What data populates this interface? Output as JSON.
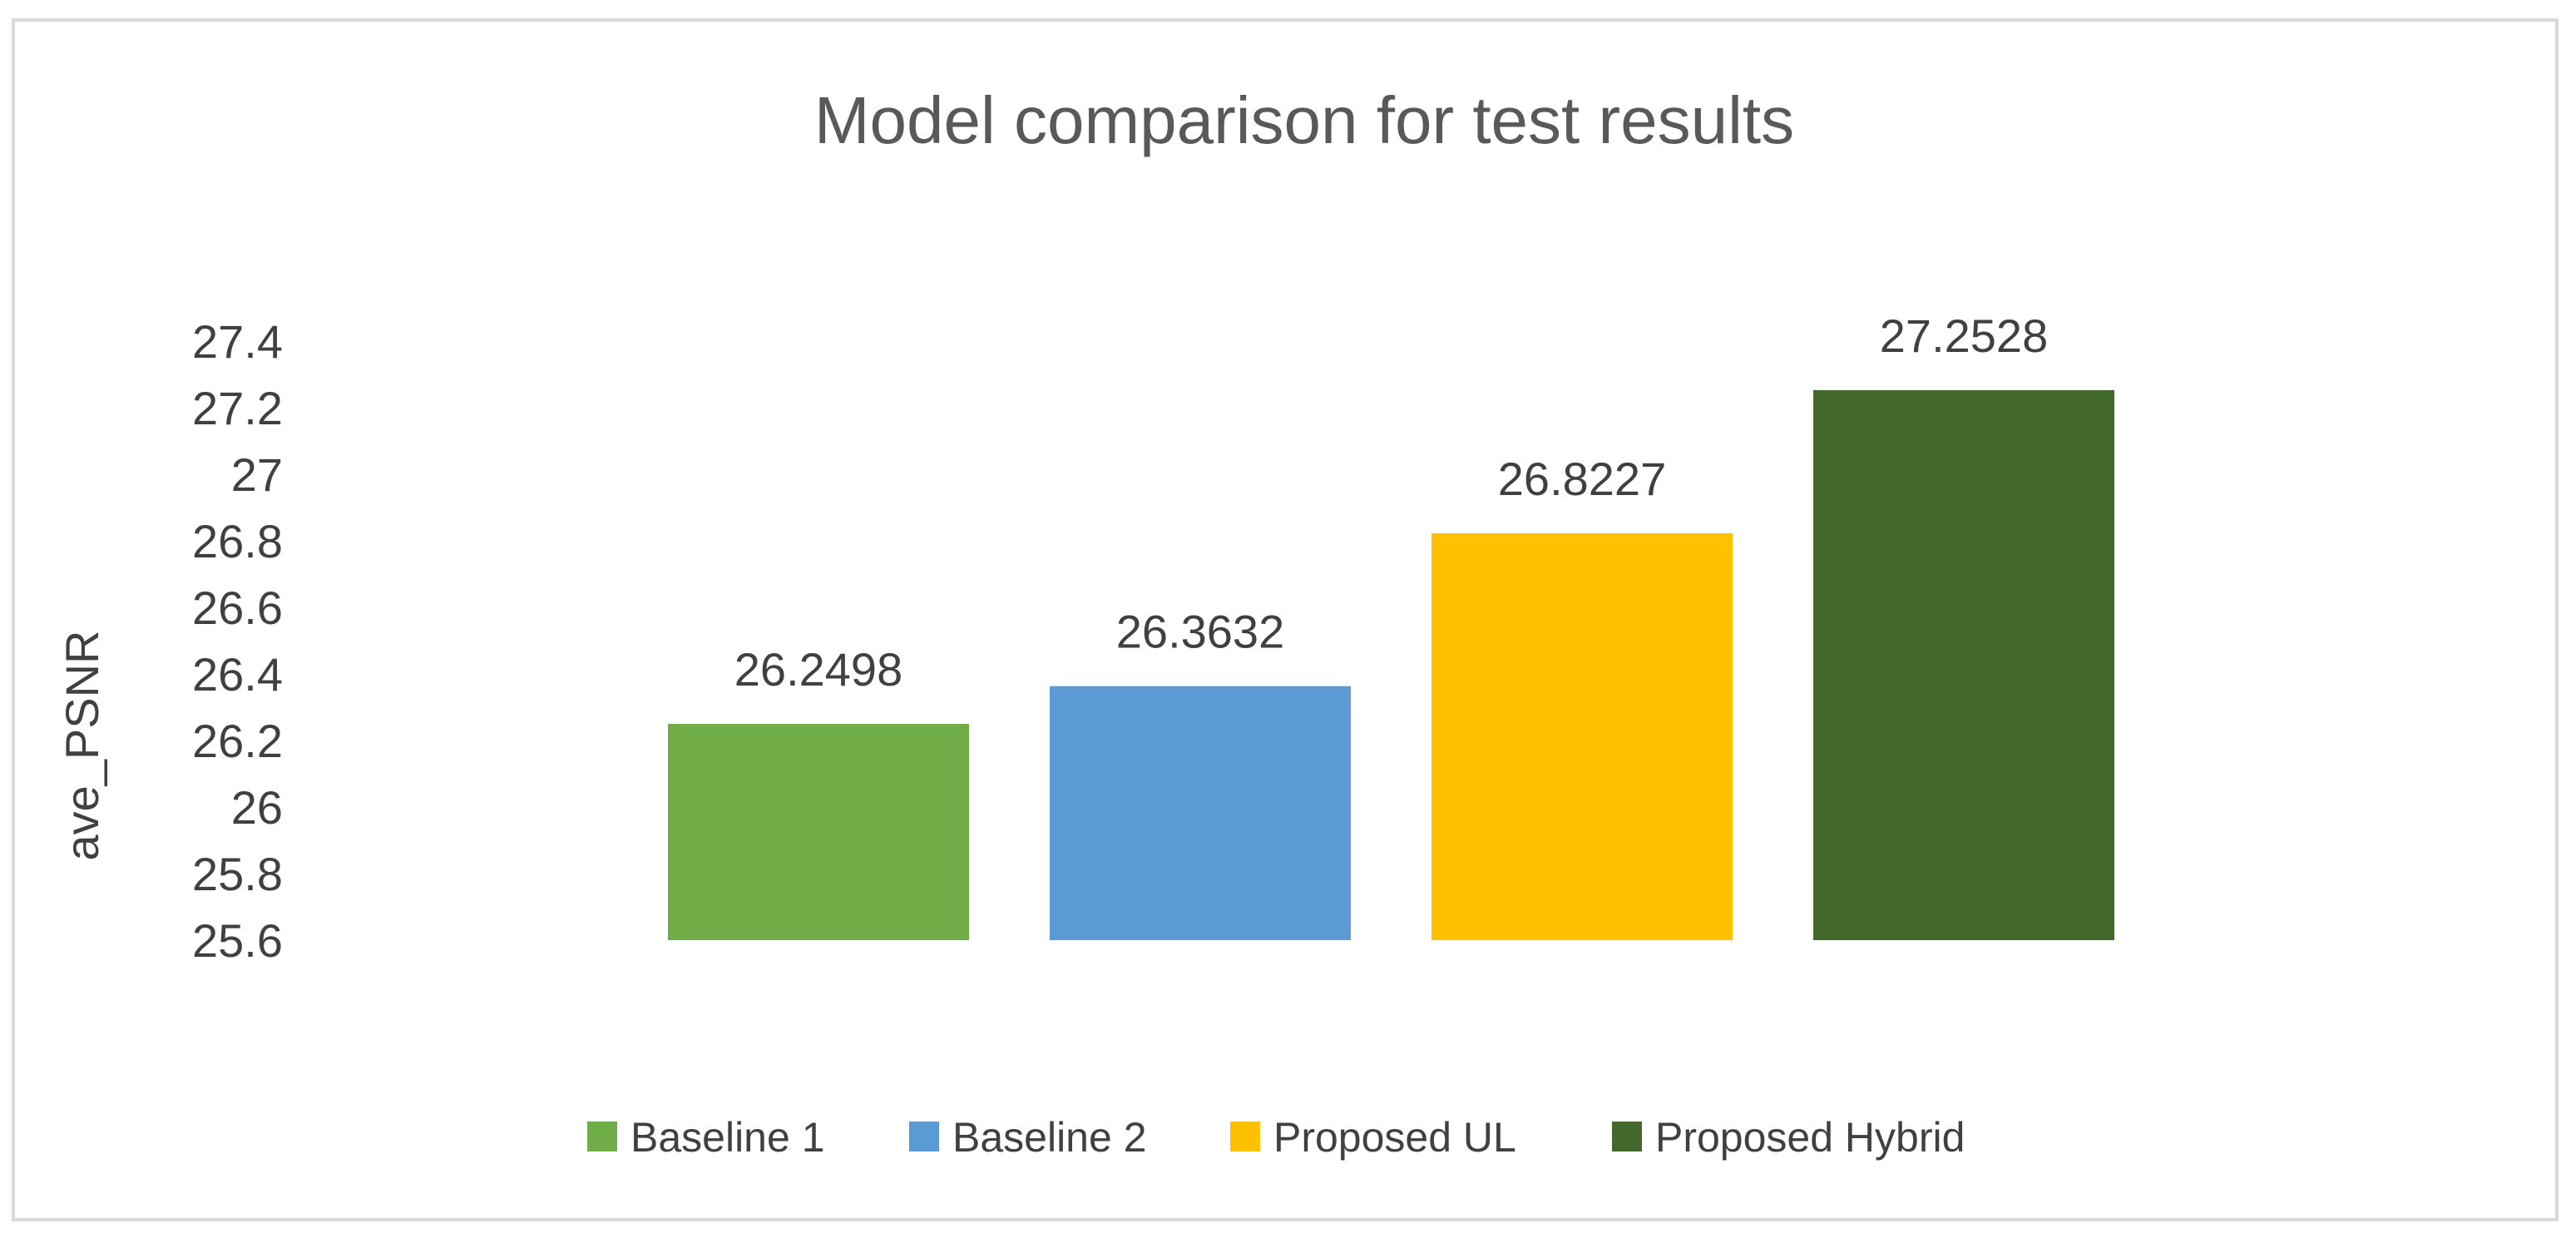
{
  "chart_data": {
    "type": "bar",
    "title": "Model comparison for test results",
    "xlabel": "",
    "ylabel": "ave_PSNR",
    "ylim": [
      25.6,
      27.4
    ],
    "yticks": [
      "27.4",
      "27.2",
      "27",
      "26.8",
      "26.6",
      "26.4",
      "26.2",
      "26",
      "25.8",
      "25.6"
    ],
    "grid": false,
    "legend_position": "bottom",
    "series": [
      {
        "name": "Baseline 1",
        "value": 26.2498,
        "label": "26.2498",
        "color": "#70ad47"
      },
      {
        "name": "Baseline 2",
        "value": 26.3632,
        "label": "26.3632",
        "color": "#5b9bd5"
      },
      {
        "name": "Proposed UL",
        "value": 26.8227,
        "label": "26.8227",
        "color": "#ffc000"
      },
      {
        "name": "Proposed Hybrid",
        "value": 27.2528,
        "label": "27.2528",
        "color": "#43682b"
      }
    ]
  }
}
